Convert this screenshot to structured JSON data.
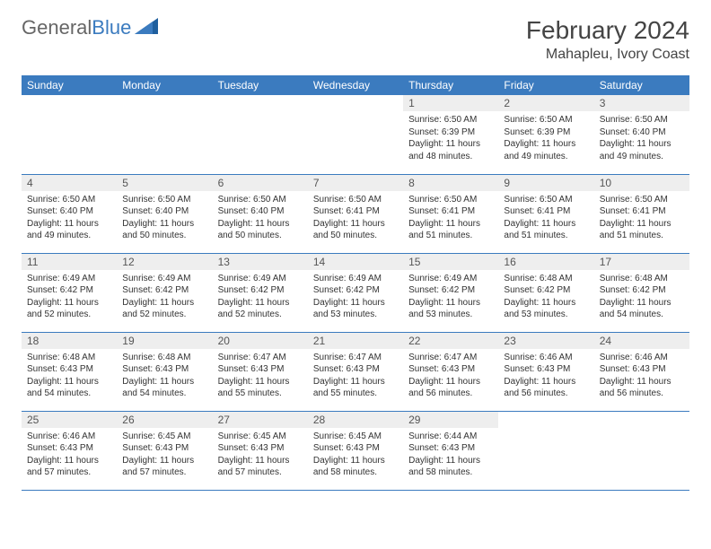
{
  "brand": {
    "part1": "General",
    "part2": "Blue"
  },
  "title": "February 2024",
  "location": "Mahapleu, Ivory Coast",
  "colors": {
    "header_bg": "#3b7bbf",
    "header_text": "#ffffff",
    "daynum_bg": "#eeeeee",
    "border": "#3b7bbf",
    "text": "#333333",
    "brand_gray": "#666666",
    "brand_blue": "#3b7bbf"
  },
  "weekdays": [
    "Sunday",
    "Monday",
    "Tuesday",
    "Wednesday",
    "Thursday",
    "Friday",
    "Saturday"
  ],
  "weeks": [
    [
      null,
      null,
      null,
      null,
      {
        "n": "1",
        "sunrise": "6:50 AM",
        "sunset": "6:39 PM",
        "daylight": "11 hours and 48 minutes."
      },
      {
        "n": "2",
        "sunrise": "6:50 AM",
        "sunset": "6:39 PM",
        "daylight": "11 hours and 49 minutes."
      },
      {
        "n": "3",
        "sunrise": "6:50 AM",
        "sunset": "6:40 PM",
        "daylight": "11 hours and 49 minutes."
      }
    ],
    [
      {
        "n": "4",
        "sunrise": "6:50 AM",
        "sunset": "6:40 PM",
        "daylight": "11 hours and 49 minutes."
      },
      {
        "n": "5",
        "sunrise": "6:50 AM",
        "sunset": "6:40 PM",
        "daylight": "11 hours and 50 minutes."
      },
      {
        "n": "6",
        "sunrise": "6:50 AM",
        "sunset": "6:40 PM",
        "daylight": "11 hours and 50 minutes."
      },
      {
        "n": "7",
        "sunrise": "6:50 AM",
        "sunset": "6:41 PM",
        "daylight": "11 hours and 50 minutes."
      },
      {
        "n": "8",
        "sunrise": "6:50 AM",
        "sunset": "6:41 PM",
        "daylight": "11 hours and 51 minutes."
      },
      {
        "n": "9",
        "sunrise": "6:50 AM",
        "sunset": "6:41 PM",
        "daylight": "11 hours and 51 minutes."
      },
      {
        "n": "10",
        "sunrise": "6:50 AM",
        "sunset": "6:41 PM",
        "daylight": "11 hours and 51 minutes."
      }
    ],
    [
      {
        "n": "11",
        "sunrise": "6:49 AM",
        "sunset": "6:42 PM",
        "daylight": "11 hours and 52 minutes."
      },
      {
        "n": "12",
        "sunrise": "6:49 AM",
        "sunset": "6:42 PM",
        "daylight": "11 hours and 52 minutes."
      },
      {
        "n": "13",
        "sunrise": "6:49 AM",
        "sunset": "6:42 PM",
        "daylight": "11 hours and 52 minutes."
      },
      {
        "n": "14",
        "sunrise": "6:49 AM",
        "sunset": "6:42 PM",
        "daylight": "11 hours and 53 minutes."
      },
      {
        "n": "15",
        "sunrise": "6:49 AM",
        "sunset": "6:42 PM",
        "daylight": "11 hours and 53 minutes."
      },
      {
        "n": "16",
        "sunrise": "6:48 AM",
        "sunset": "6:42 PM",
        "daylight": "11 hours and 53 minutes."
      },
      {
        "n": "17",
        "sunrise": "6:48 AM",
        "sunset": "6:42 PM",
        "daylight": "11 hours and 54 minutes."
      }
    ],
    [
      {
        "n": "18",
        "sunrise": "6:48 AM",
        "sunset": "6:43 PM",
        "daylight": "11 hours and 54 minutes."
      },
      {
        "n": "19",
        "sunrise": "6:48 AM",
        "sunset": "6:43 PM",
        "daylight": "11 hours and 54 minutes."
      },
      {
        "n": "20",
        "sunrise": "6:47 AM",
        "sunset": "6:43 PM",
        "daylight": "11 hours and 55 minutes."
      },
      {
        "n": "21",
        "sunrise": "6:47 AM",
        "sunset": "6:43 PM",
        "daylight": "11 hours and 55 minutes."
      },
      {
        "n": "22",
        "sunrise": "6:47 AM",
        "sunset": "6:43 PM",
        "daylight": "11 hours and 56 minutes."
      },
      {
        "n": "23",
        "sunrise": "6:46 AM",
        "sunset": "6:43 PM",
        "daylight": "11 hours and 56 minutes."
      },
      {
        "n": "24",
        "sunrise": "6:46 AM",
        "sunset": "6:43 PM",
        "daylight": "11 hours and 56 minutes."
      }
    ],
    [
      {
        "n": "25",
        "sunrise": "6:46 AM",
        "sunset": "6:43 PM",
        "daylight": "11 hours and 57 minutes."
      },
      {
        "n": "26",
        "sunrise": "6:45 AM",
        "sunset": "6:43 PM",
        "daylight": "11 hours and 57 minutes."
      },
      {
        "n": "27",
        "sunrise": "6:45 AM",
        "sunset": "6:43 PM",
        "daylight": "11 hours and 57 minutes."
      },
      {
        "n": "28",
        "sunrise": "6:45 AM",
        "sunset": "6:43 PM",
        "daylight": "11 hours and 58 minutes."
      },
      {
        "n": "29",
        "sunrise": "6:44 AM",
        "sunset": "6:43 PM",
        "daylight": "11 hours and 58 minutes."
      },
      null,
      null
    ]
  ],
  "labels": {
    "sunrise": "Sunrise:",
    "sunset": "Sunset:",
    "daylight": "Daylight:"
  }
}
